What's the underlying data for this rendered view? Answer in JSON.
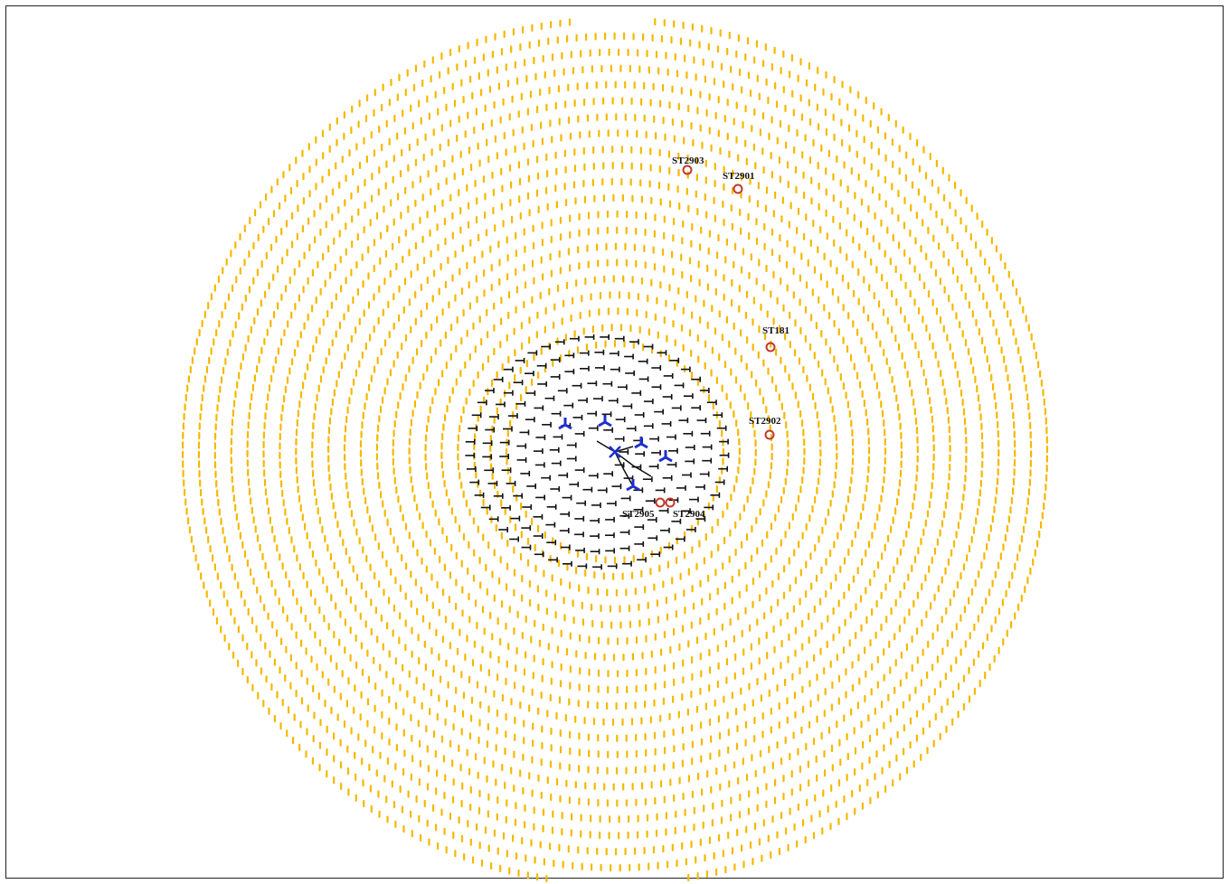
{
  "figure": {
    "description_colors": {
      "outer_spiral": "#f5b800",
      "inner_spiral": "#111111",
      "antenna_arms": "#1f2fd0",
      "station_ring": "#c0392b"
    },
    "stations": [
      {
        "id": "st2903",
        "label": "ST2903"
      },
      {
        "id": "st2901",
        "label": "ST2901"
      },
      {
        "id": "st181",
        "label": "ST181"
      },
      {
        "id": "st2902",
        "label": "ST2902"
      },
      {
        "id": "st2905",
        "label": "ST2905"
      },
      {
        "id": "st2904",
        "label": "ST2904"
      }
    ]
  }
}
